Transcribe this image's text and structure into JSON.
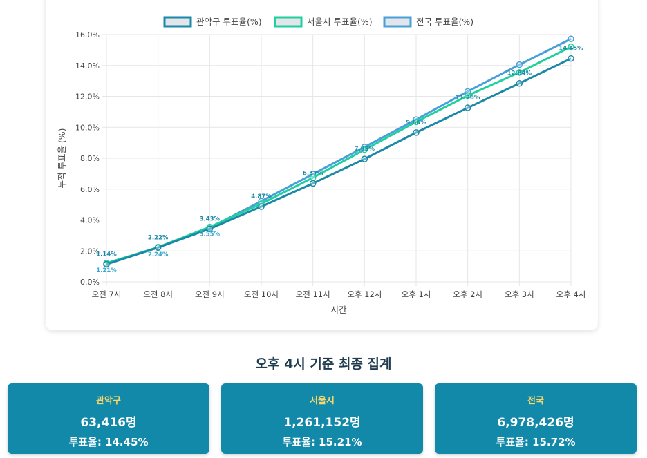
{
  "chart_data": {
    "type": "line",
    "categories": [
      "오전 7시",
      "오전 8시",
      "오전 9시",
      "오전 10시",
      "오전 11시",
      "오후 12시",
      "오후 1시",
      "오후 2시",
      "오후 3시",
      "오후 4시"
    ],
    "xlabel": "시간",
    "ylabel": "누적 투표율 (%)",
    "ylim": [
      0,
      16
    ],
    "yticks": [
      "0.0%",
      "2.0%",
      "4.0%",
      "6.0%",
      "8.0%",
      "10.0%",
      "12.0%",
      "14.0%",
      "16.0%"
    ],
    "grid": true,
    "legend_position": "top-center",
    "series": [
      {
        "name": "관악구 투표율(%)",
        "color": "#1a88a6",
        "values": [
          1.14,
          2.22,
          3.43,
          4.87,
          6.37,
          7.95,
          9.66,
          11.26,
          12.84,
          14.45
        ],
        "data_labels": [
          "1.14%",
          "2.22%",
          "3.43%",
          "4.87%",
          "6.37%",
          "7.95%",
          "9.66%",
          "11.26%",
          "12.84%",
          "14.45%"
        ]
      },
      {
        "name": "서울시 투표율(%)",
        "color": "#1fcf9e",
        "values": [
          1.21,
          2.24,
          3.55,
          5.05,
          6.74,
          8.55,
          10.35,
          12.05,
          13.55,
          15.21
        ],
        "data_labels": [
          "1.21%",
          "2.24%",
          "3.55%"
        ]
      },
      {
        "name": "전국 투표율(%)",
        "color": "#48a0d8",
        "values": [
          1.14,
          2.24,
          3.5,
          5.22,
          6.97,
          8.72,
          10.5,
          12.32,
          14.05,
          15.72
        ]
      }
    ]
  },
  "summary": {
    "title": "오후 4시 기준 최종 집계",
    "cards": [
      {
        "name": "관악구",
        "count": "63,416명",
        "rate": "투표율: 14.45%"
      },
      {
        "name": "서울시",
        "count": "1,261,152명",
        "rate": "투표율: 15.21%"
      },
      {
        "name": "전국",
        "count": "6,978,426명",
        "rate": "투표율: 15.72%"
      }
    ]
  }
}
